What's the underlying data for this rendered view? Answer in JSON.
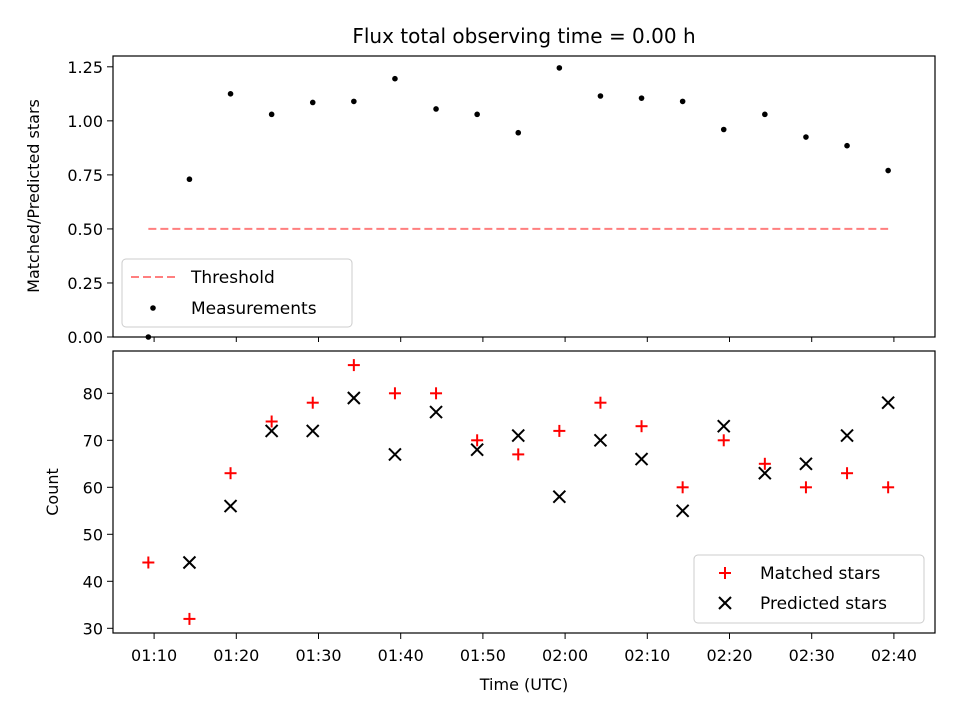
{
  "chart_data": [
    {
      "type": "scatter",
      "title": "Flux total observing time = 0.00 h",
      "xlabel": "",
      "ylabel": "Matched/Predicted stars",
      "ylim": [
        0,
        1.3
      ],
      "yticks": [
        "0.00",
        "0.25",
        "0.50",
        "0.75",
        "1.00",
        "1.25"
      ],
      "xlim_minutes": [
        65,
        165
      ],
      "threshold": {
        "name": "Threshold",
        "value": 0.5,
        "x_range": [
          69.3,
          159.3
        ],
        "color": "#ff7f7f"
      },
      "series": [
        {
          "name": "Measurements",
          "color": "#000000",
          "x": [
            69.3,
            74.3,
            79.3,
            84.3,
            89.3,
            94.3,
            99.3,
            104.3,
            109.3,
            114.3,
            119.3,
            124.3,
            129.3,
            134.3,
            139.3,
            144.3,
            149.3,
            154.3,
            159.3
          ],
          "values": [
            0.0,
            0.73,
            1.125,
            1.03,
            1.085,
            1.09,
            1.195,
            1.055,
            1.03,
            0.945,
            1.245,
            1.115,
            1.105,
            1.09,
            0.96,
            1.03,
            0.925,
            0.885,
            0.77
          ]
        }
      ],
      "legend": {
        "position": "lower-left",
        "entries": [
          "Threshold",
          "Measurements"
        ]
      }
    },
    {
      "type": "scatter",
      "title": "",
      "xlabel": "Time (UTC)",
      "ylabel": "Count",
      "ylim": [
        29,
        89
      ],
      "yticks": [
        "30",
        "40",
        "50",
        "60",
        "70",
        "80"
      ],
      "xlim_minutes": [
        65,
        165
      ],
      "xticks": [
        "01:10",
        "01:20",
        "01:30",
        "01:40",
        "01:50",
        "02:00",
        "02:10",
        "02:20",
        "02:30",
        "02:40"
      ],
      "x": [
        69.3,
        74.3,
        79.3,
        84.3,
        89.3,
        94.3,
        99.3,
        104.3,
        109.3,
        114.3,
        119.3,
        124.3,
        129.3,
        134.3,
        139.3,
        144.3,
        149.3,
        154.3,
        159.3
      ],
      "series": [
        {
          "name": "Matched stars",
          "color": "#ff0000",
          "marker": "plus",
          "values": [
            44,
            32,
            63,
            74,
            78,
            86,
            80,
            80,
            70,
            67,
            72,
            78,
            73,
            60,
            70,
            65,
            60,
            63,
            60
          ]
        },
        {
          "name": "Predicted stars",
          "color": "#000000",
          "marker": "x",
          "values": [
            null,
            44,
            56,
            72,
            72,
            79,
            67,
            76,
            68,
            71,
            58,
            70,
            66,
            55,
            73,
            63,
            65,
            71,
            78
          ]
        }
      ],
      "legend": {
        "position": "lower-right",
        "entries": [
          "Matched stars",
          "Predicted stars"
        ]
      }
    }
  ]
}
